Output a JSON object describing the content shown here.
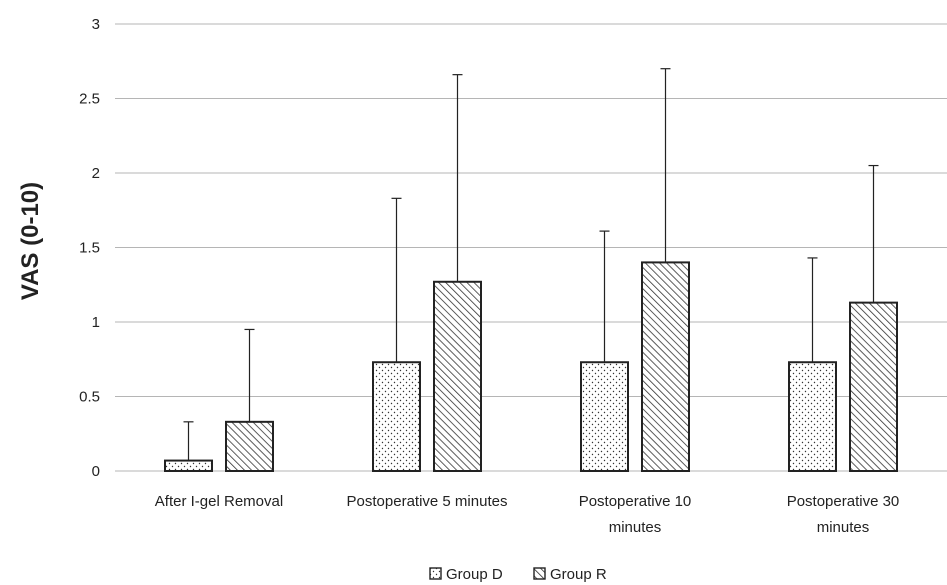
{
  "chart_data": {
    "type": "bar",
    "title": "",
    "xlabel": "",
    "ylabel": "VAS (0-10)",
    "ylim": [
      0,
      3
    ],
    "yticks": [
      "0",
      "0.5",
      "1",
      "1.5",
      "2",
      "2.5",
      "3"
    ],
    "grid": "horizontal",
    "legend_position": "bottom",
    "categories": [
      [
        "After I-gel Removal"
      ],
      [
        "Postoperative 5 minutes"
      ],
      [
        "Postoperative 10",
        "minutes"
      ],
      [
        "Postoperative 30",
        "minutes"
      ]
    ],
    "series": [
      {
        "name": "Group D",
        "pattern": "dots",
        "values": [
          0.07,
          0.73,
          0.73,
          0.73
        ],
        "error": [
          0.26,
          1.1,
          0.88,
          0.7
        ]
      },
      {
        "name": "Group R",
        "pattern": "hatch",
        "values": [
          0.33,
          1.27,
          1.4,
          1.13
        ],
        "error": [
          0.62,
          1.39,
          1.3,
          0.92
        ]
      }
    ],
    "colors": {
      "bar_stroke": "#222222",
      "grid": "#b5b5b5",
      "pattern_ink": "#333333"
    }
  }
}
